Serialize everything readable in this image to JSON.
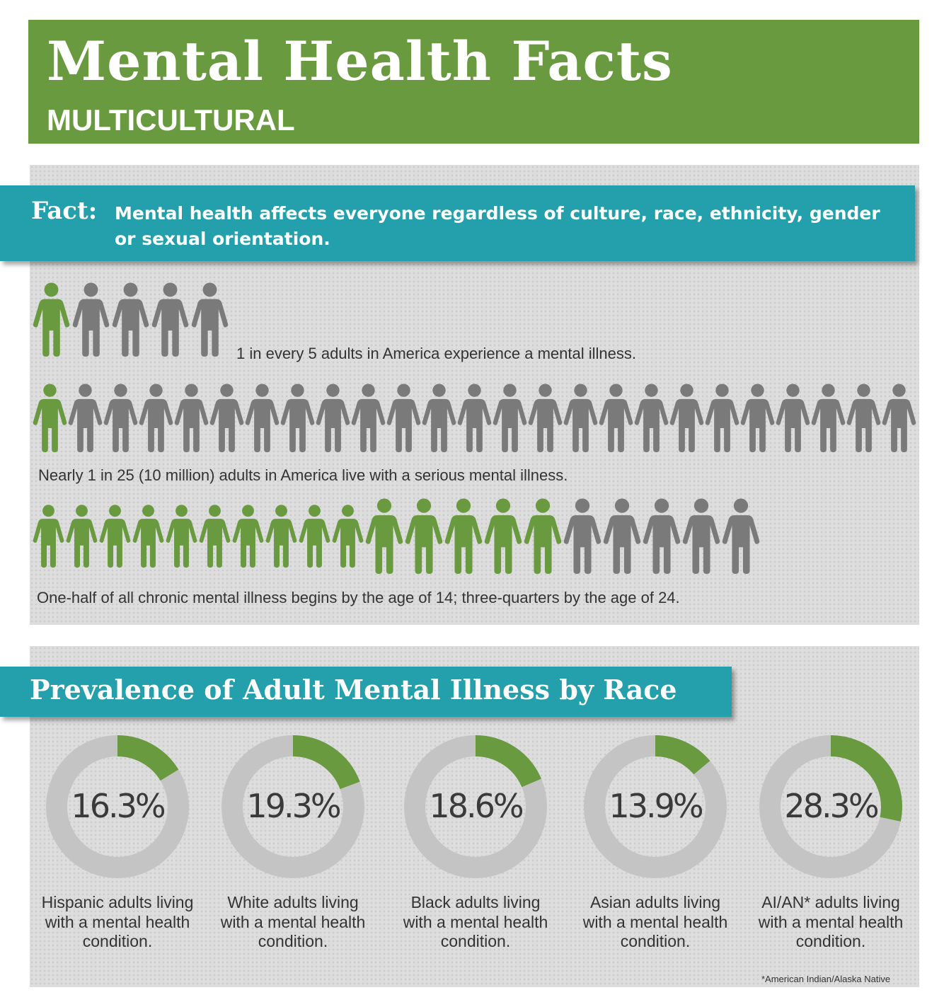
{
  "header": {
    "title": "Mental Health Facts",
    "subtitle": "MULTICULTURAL"
  },
  "fact": {
    "label": "Fact:",
    "text": "Mental health affects everyone regardless of culture, race, ethnicity, gender or sexual orientation."
  },
  "colors": {
    "green": "#6a9a3f",
    "teal": "#23a0ac",
    "gray_person": "#7a7a7a",
    "ring_gray": "#c4c4c4"
  },
  "people_stats": [
    {
      "text": "1 in every 5 adults in America experience a mental illness.",
      "total": 5,
      "highlighted": 1,
      "icon": "person-icon"
    },
    {
      "text": "Nearly 1 in 25 (10 million) adults in America live with a serious mental illness.",
      "total": 25,
      "highlighted": 1,
      "icon": "person-icon"
    },
    {
      "text": "One-half of all chronic mental illness begins by the age of 14; three-quarters by the age of 24.",
      "children": 10,
      "adults_highlighted": 5,
      "adults_gray": 5,
      "icon": "person-icon"
    }
  ],
  "race_section": {
    "title": "Prevalence of Adult Mental Illness by Race",
    "footnote": "*American Indian/Alaska Native"
  },
  "chart_data": {
    "type": "pie",
    "title": "Prevalence of Adult Mental Illness by Race",
    "categories": [
      "Hispanic",
      "White",
      "Black",
      "Asian",
      "AI/AN*"
    ],
    "values": [
      16.3,
      19.3,
      18.6,
      13.9,
      28.3
    ],
    "value_labels": [
      "16.3%",
      "19.3%",
      "18.6%",
      "13.9%",
      "28.3%"
    ],
    "descriptions": [
      "Hispanic adults living with a mental health condition.",
      "White adults living with a mental health condition.",
      "Black adults living with a mental health condition.",
      "Asian adults living with a mental health condition.",
      "AI/AN* adults living with a mental health condition."
    ]
  }
}
